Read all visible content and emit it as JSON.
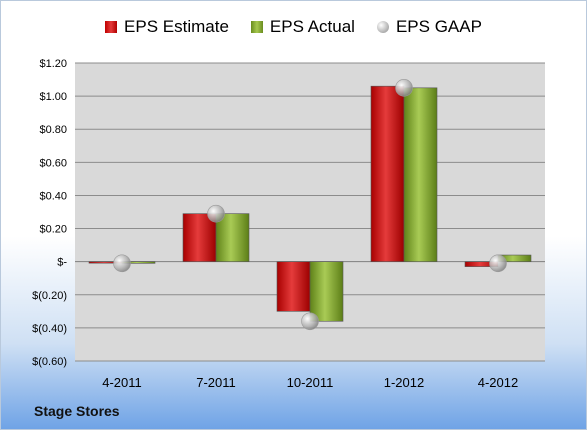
{
  "company": "Stage Stores",
  "chart_data": {
    "type": "bar",
    "categories": [
      "4-2011",
      "7-2011",
      "10-2011",
      "1-2012",
      "4-2012"
    ],
    "series": [
      {
        "name": "EPS Estimate",
        "kind": "bar",
        "color": "#c81414",
        "values": [
          0.0,
          0.29,
          -0.3,
          1.06,
          -0.03
        ]
      },
      {
        "name": "EPS Actual",
        "kind": "bar",
        "color": "#8db33a",
        "values": [
          -0.01,
          0.29,
          -0.36,
          1.05,
          0.04
        ]
      },
      {
        "name": "EPS GAAP",
        "kind": "marker",
        "color": "#c0c0c0",
        "values": [
          -0.01,
          0.29,
          -0.36,
          1.05,
          -0.01
        ]
      }
    ],
    "yticks": [
      1.2,
      1.0,
      0.8,
      0.6,
      0.4,
      0.2,
      0,
      -0.2,
      -0.4,
      -0.6
    ],
    "ytick_labels": [
      "$1.20",
      "$1.00",
      "$0.80",
      "$0.60",
      "$0.40",
      "$0.20",
      "$-",
      "$(0.20)",
      "$(0.40)",
      "$(0.60)"
    ],
    "ylim": [
      -0.6,
      1.2
    ],
    "grid": true,
    "legend": "top"
  }
}
